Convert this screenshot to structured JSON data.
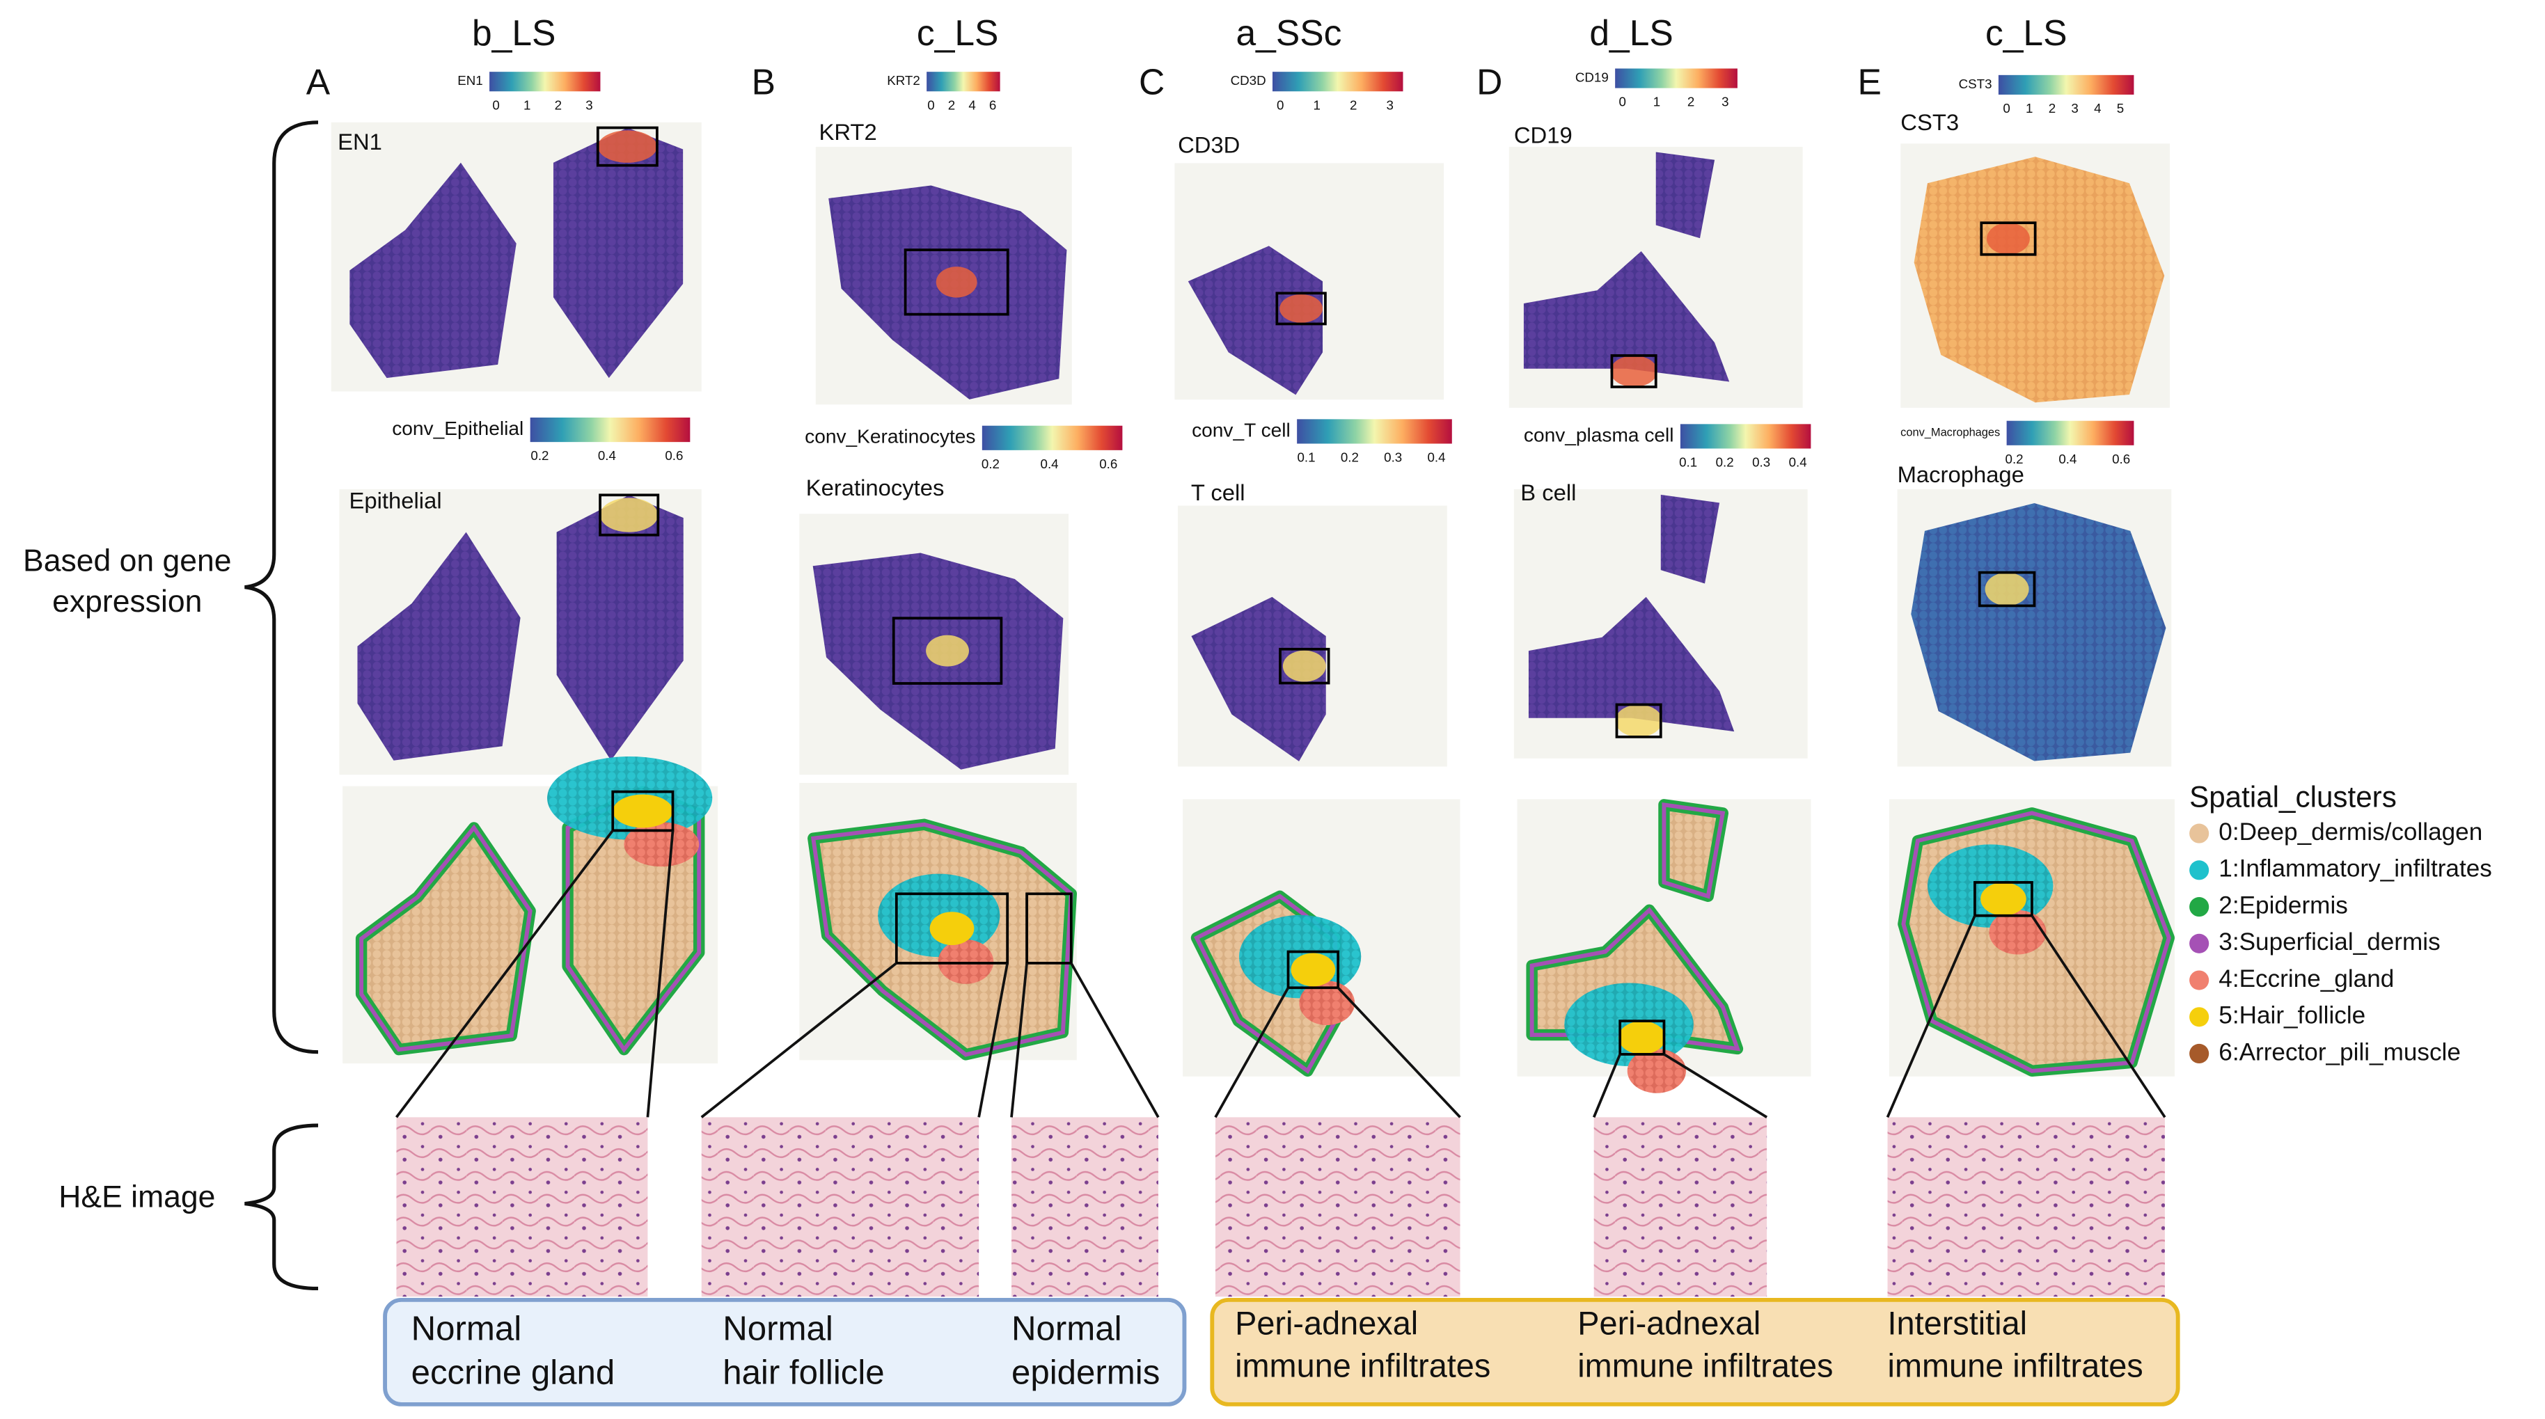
{
  "columns": [
    {
      "sample": "b_LS",
      "panel": "A",
      "gene": "EN1",
      "gene_colorbar": {
        "label": "EN1",
        "ticks": [
          0,
          1,
          2,
          3
        ]
      },
      "conv_colorbar": {
        "label": "conv_Epithelial",
        "ticks": [
          0.2,
          0.4,
          0.6
        ]
      },
      "cell_type": "Epithelial"
    },
    {
      "sample": "c_LS",
      "panel": "B",
      "gene": "KRT2",
      "gene_colorbar": {
        "label": "KRT2",
        "ticks": [
          0,
          2,
          4,
          6
        ]
      },
      "conv_colorbar": {
        "label": "conv_Keratinocytes",
        "ticks": [
          0.2,
          0.4,
          0.6
        ]
      },
      "cell_type": "Keratinocytes"
    },
    {
      "sample": "a_SSc",
      "panel": "C",
      "gene": "CD3D",
      "gene_colorbar": {
        "label": "CD3D",
        "ticks": [
          0,
          1,
          2,
          3
        ]
      },
      "conv_colorbar": {
        "label": "conv_T cell",
        "ticks": [
          0.1,
          0.2,
          0.3,
          0.4
        ]
      },
      "cell_type": "T cell"
    },
    {
      "sample": "d_LS",
      "panel": "D",
      "gene": "CD19",
      "gene_colorbar": {
        "label": "CD19",
        "ticks": [
          0,
          1,
          2,
          3
        ]
      },
      "conv_colorbar": {
        "label": "conv_plasma cell",
        "ticks": [
          0.1,
          0.2,
          0.3,
          0.4
        ]
      },
      "cell_type": "B cell"
    },
    {
      "sample": "c_LS",
      "panel": "E",
      "gene": "CST3",
      "gene_colorbar": {
        "label": "CST3",
        "ticks": [
          0,
          1,
          2,
          3,
          4,
          5
        ]
      },
      "conv_colorbar": {
        "label": "conv_Macrophages",
        "ticks": [
          0.2,
          0.4,
          0.6
        ]
      },
      "cell_type": "Macrophage"
    }
  ],
  "left_labels": {
    "gene_expression": [
      "Based on gene",
      "expression"
    ],
    "he_image": "H&E image"
  },
  "legend": {
    "title": "Spatial_clusters",
    "items": [
      {
        "label": "0:Deep_dermis/collagen",
        "color": "#e8c39a"
      },
      {
        "label": "1:Inflammatory_infiltrates",
        "color": "#1fc1cc"
      },
      {
        "label": "2:Epidermis",
        "color": "#22a845"
      },
      {
        "label": "3:Superficial_dermis",
        "color": "#a551b5"
      },
      {
        "label": "4:Eccrine_gland",
        "color": "#f0806f"
      },
      {
        "label": "5:Hair_follicle",
        "color": "#f5cf0c"
      },
      {
        "label": "6:Arrector_pili_muscle",
        "color": "#a65a2a"
      }
    ]
  },
  "findings": {
    "normal": [
      [
        "Normal",
        "eccrine gland"
      ],
      [
        "Normal",
        "hair follicle"
      ],
      [
        "Normal",
        "epidermis"
      ]
    ],
    "immune": [
      [
        "Peri-adnexal",
        "immune infiltrates"
      ],
      [
        "Peri-adnexal",
        "immune infiltrates"
      ],
      [
        "Interstitial",
        "immune infiltrates"
      ]
    ]
  }
}
